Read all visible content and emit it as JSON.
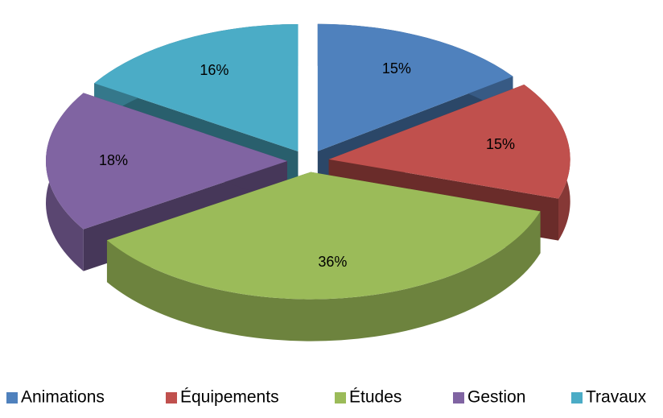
{
  "chart_data": {
    "type": "pie",
    "categories": [
      "Animations",
      "Équipements",
      "Études",
      "Gestion",
      "Travaux"
    ],
    "values": [
      15,
      15,
      36,
      18,
      16
    ],
    "value_labels": [
      "15%",
      "15%",
      "36%",
      "18%",
      "16%"
    ],
    "colors": [
      "#4f81bd",
      "#c0504d",
      "#9bbb59",
      "#8064a2",
      "#4bacc6"
    ],
    "legend": "bottom"
  }
}
